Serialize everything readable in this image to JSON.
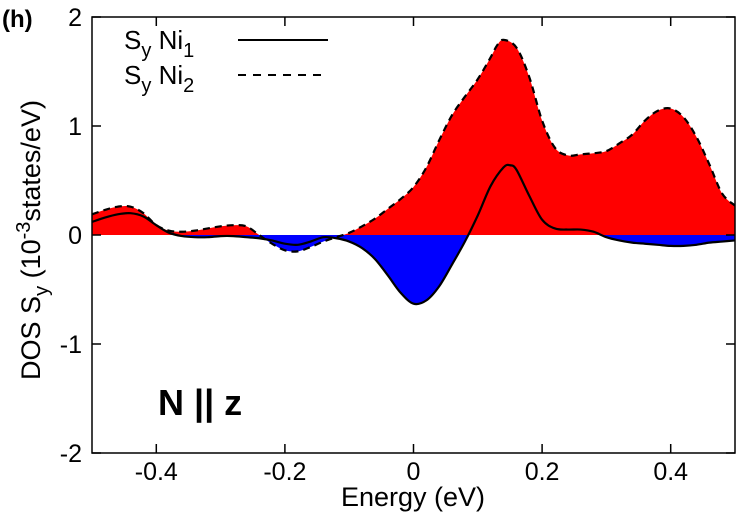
{
  "chart_data": {
    "type": "area",
    "panel_label": "(h)",
    "xlabel": "Energy (eV)",
    "ylabel_parts": [
      "DOS S",
      "y",
      " (10",
      "-3",
      "states/eV)"
    ],
    "xlim": [
      -0.5,
      0.5
    ],
    "ylim": [
      -2,
      2
    ],
    "x_ticks": [
      -0.4,
      -0.2,
      0,
      0.2,
      0.4
    ],
    "x_tick_labels": [
      "-0.4",
      "-0.2",
      "0",
      "0.2",
      "0.4"
    ],
    "y_ticks": [
      -2,
      -1,
      0,
      1,
      2
    ],
    "y_tick_labels": [
      "-2",
      "-1",
      "0",
      "1",
      "2"
    ],
    "annotation": "N || z",
    "fill_colors": {
      "positive": "#ff0000",
      "negative": "#0000ff"
    },
    "series": [
      {
        "name": "S_y Ni_1",
        "legend_main": "S",
        "legend_sub1": "y",
        "legend_mid": " Ni",
        "legend_sub2": "1",
        "style": "solid",
        "x": [
          -0.5,
          -0.48,
          -0.46,
          -0.44,
          -0.42,
          -0.4,
          -0.38,
          -0.36,
          -0.34,
          -0.32,
          -0.3,
          -0.28,
          -0.26,
          -0.24,
          -0.22,
          -0.2,
          -0.18,
          -0.16,
          -0.14,
          -0.12,
          -0.1,
          -0.08,
          -0.06,
          -0.04,
          -0.02,
          0.0,
          0.02,
          0.04,
          0.06,
          0.08,
          0.1,
          0.12,
          0.14,
          0.15,
          0.16,
          0.18,
          0.2,
          0.22,
          0.24,
          0.26,
          0.28,
          0.3,
          0.32,
          0.34,
          0.36,
          0.38,
          0.4,
          0.42,
          0.44,
          0.46,
          0.48,
          0.5
        ],
        "values": [
          0.12,
          0.16,
          0.19,
          0.2,
          0.17,
          0.09,
          0.02,
          -0.01,
          -0.02,
          -0.02,
          -0.01,
          -0.01,
          -0.02,
          -0.03,
          -0.05,
          -0.08,
          -0.09,
          -0.06,
          -0.02,
          -0.03,
          -0.06,
          -0.12,
          -0.22,
          -0.37,
          -0.53,
          -0.63,
          -0.6,
          -0.47,
          -0.27,
          -0.06,
          0.18,
          0.45,
          0.62,
          0.64,
          0.6,
          0.36,
          0.14,
          0.06,
          0.05,
          0.05,
          0.03,
          -0.02,
          -0.05,
          -0.07,
          -0.08,
          -0.09,
          -0.1,
          -0.1,
          -0.09,
          -0.07,
          -0.06,
          -0.05
        ]
      },
      {
        "name": "S_y Ni_2",
        "legend_main": "S",
        "legend_sub1": "y",
        "legend_mid": " Ni",
        "legend_sub2": "2",
        "style": "dashed",
        "x": [
          -0.5,
          -0.48,
          -0.46,
          -0.44,
          -0.42,
          -0.4,
          -0.38,
          -0.36,
          -0.34,
          -0.32,
          -0.3,
          -0.28,
          -0.26,
          -0.24,
          -0.22,
          -0.2,
          -0.18,
          -0.16,
          -0.14,
          -0.12,
          -0.1,
          -0.08,
          -0.06,
          -0.04,
          -0.02,
          0.0,
          0.02,
          0.04,
          0.06,
          0.08,
          0.1,
          0.12,
          0.13,
          0.14,
          0.16,
          0.18,
          0.2,
          0.22,
          0.24,
          0.26,
          0.28,
          0.3,
          0.32,
          0.34,
          0.36,
          0.38,
          0.4,
          0.42,
          0.44,
          0.46,
          0.48,
          0.5
        ],
        "values": [
          0.19,
          0.23,
          0.26,
          0.26,
          0.2,
          0.09,
          0.04,
          0.03,
          0.04,
          0.06,
          0.08,
          0.09,
          0.08,
          0.0,
          -0.08,
          -0.14,
          -0.15,
          -0.11,
          -0.06,
          -0.02,
          0.02,
          0.08,
          0.15,
          0.24,
          0.33,
          0.44,
          0.62,
          0.87,
          1.1,
          1.27,
          1.43,
          1.63,
          1.74,
          1.79,
          1.72,
          1.45,
          1.05,
          0.8,
          0.73,
          0.74,
          0.75,
          0.77,
          0.84,
          0.92,
          1.05,
          1.14,
          1.16,
          1.08,
          0.9,
          0.65,
          0.38,
          0.27
        ]
      }
    ]
  }
}
